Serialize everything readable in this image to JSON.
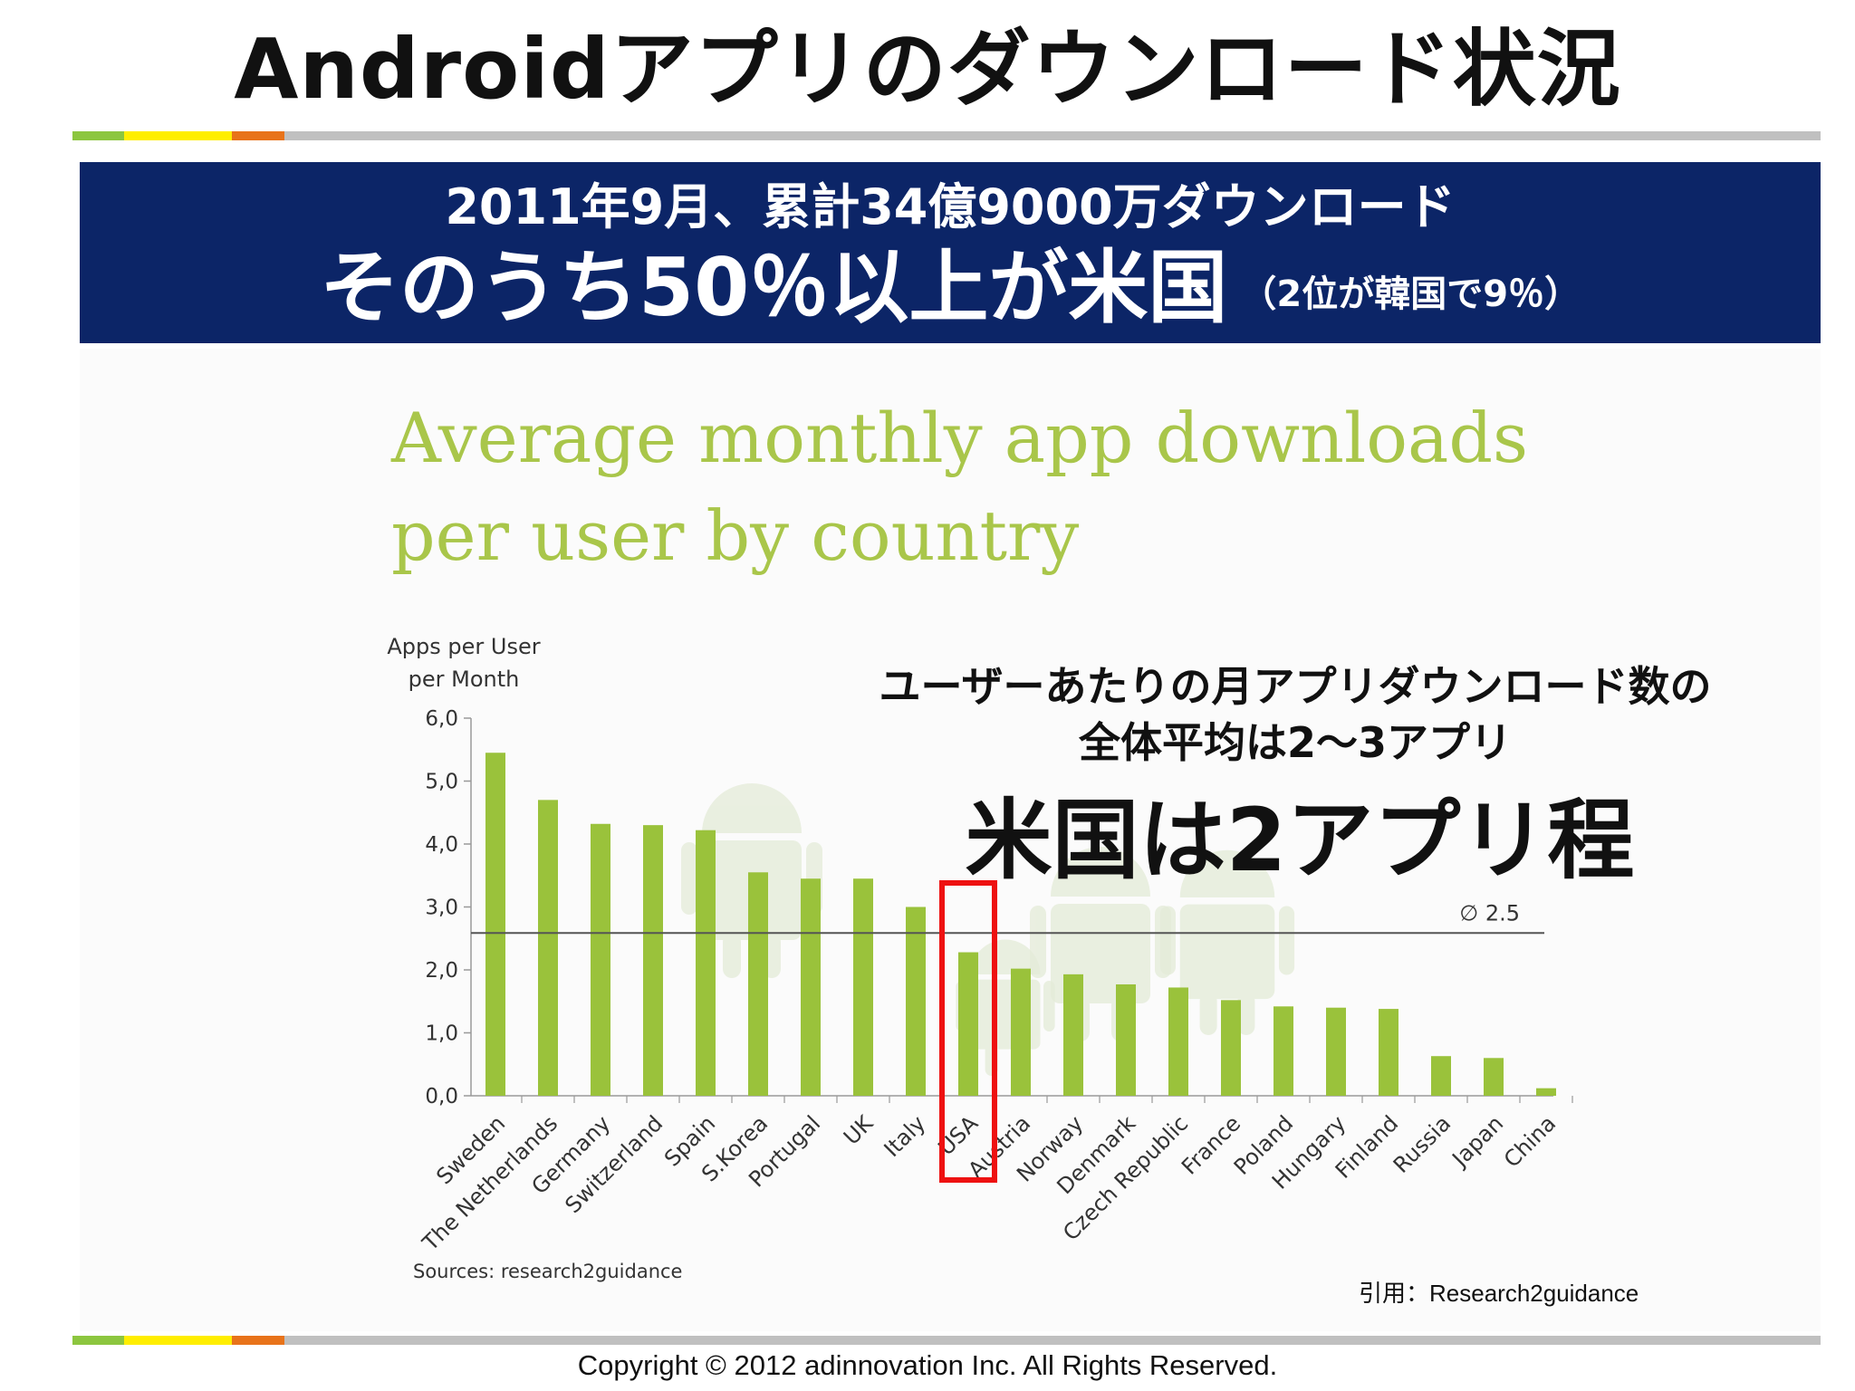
{
  "slide": {
    "title": "Androidアプリのダウンロード状況"
  },
  "banner": {
    "line1": "2011年9月、累計34億9000万ダウンロード",
    "line2": "そのうち50％以上が米国",
    "note": "（2位が韓国で9％）",
    "background": "#0c2567"
  },
  "rule_colors": [
    "#8cc63f",
    "#ffee00",
    "#e8731a",
    "#c0c0c0"
  ],
  "chart_data": {
    "type": "bar",
    "title": "Average monthly app downloads per user by country",
    "title_lines": [
      "Average monthly app downloads",
      "per user by country"
    ],
    "ylabel_lines": [
      "Apps per User",
      "per Month"
    ],
    "ylim": [
      0,
      6
    ],
    "yticks": [
      "0,0",
      "1,0",
      "2,0",
      "3,0",
      "4,0",
      "5,0",
      "6,0"
    ],
    "categories": [
      "Sweden",
      "The Netherlands",
      "Germany",
      "Switzerland",
      "Spain",
      "S.Korea",
      "Portugal",
      "UK",
      "Italy",
      "USA",
      "Austria",
      "Norway",
      "Denmark",
      "Czech Republic",
      "France",
      "Poland",
      "Hungary",
      "Finland",
      "Russia",
      "Japan",
      "China"
    ],
    "values": [
      5.45,
      4.7,
      4.32,
      4.3,
      4.22,
      3.55,
      3.45,
      3.45,
      3.0,
      2.28,
      2.02,
      1.93,
      1.77,
      1.72,
      1.52,
      1.42,
      1.4,
      1.38,
      0.63,
      0.6,
      0.12
    ],
    "average_label": "∅ 2.5",
    "average_value": 2.5,
    "highlight_category": "USA",
    "bar_color": "#9ac23b",
    "highlight_color": "#ee1111",
    "source": "Sources: research2guidance",
    "grid": false
  },
  "callout": {
    "line1": "ユーザーあたりの月アプリダウンロード数の",
    "line2": "全体平均は2〜3アプリ",
    "line3": "米国は2アプリ程"
  },
  "citation": "引用：Research2guidance",
  "copyright": "Copyright © 2012  adinnovation Inc. All Rights Reserved."
}
